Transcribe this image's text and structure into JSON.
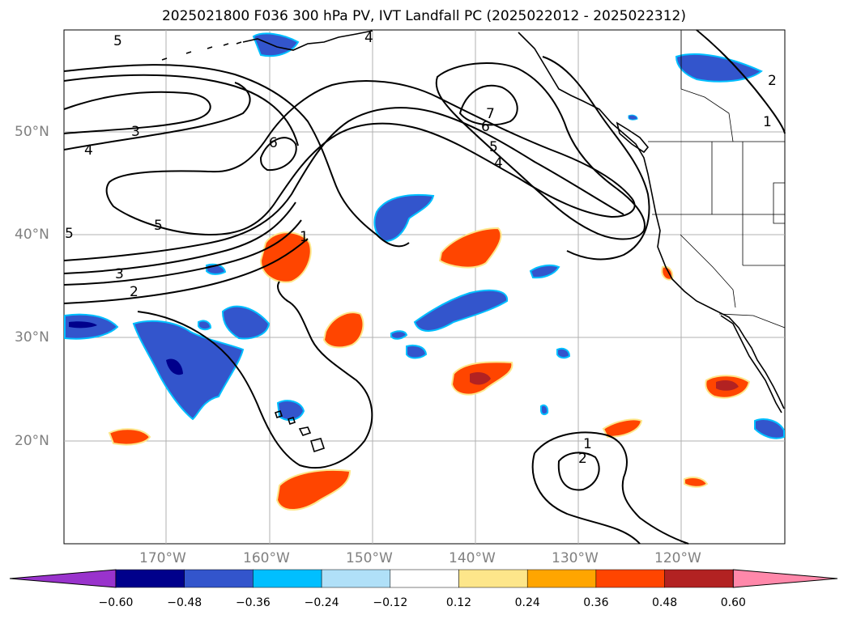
{
  "title": "2025021800 F036 300 hPa PV, IVT Landfall PC (2025022012 - 2025022312)",
  "axes": {
    "lat_labels": [
      "50°N",
      "40°N",
      "30°N",
      "20°N"
    ],
    "lon_labels": [
      "170°W",
      "160°W",
      "150°W",
      "140°W",
      "130°W",
      "120°W"
    ]
  },
  "contour_labels": [
    "5",
    "4",
    "3",
    "4",
    "6",
    "5",
    "3",
    "2",
    "7",
    "6",
    "5",
    "4",
    "2",
    "1",
    "1",
    "2",
    "5",
    "1"
  ],
  "colorbar": {
    "tick_labels": [
      "−0.60",
      "−0.48",
      "−0.36",
      "−0.24",
      "−0.12",
      "0.12",
      "0.24",
      "0.36",
      "0.48",
      "0.60"
    ],
    "colors": [
      "#9933cc",
      "#00008b",
      "#3355cc",
      "#00bfff",
      "#b0e0f8",
      "#ffffff",
      "#fde68a",
      "#ffa500",
      "#ff4500",
      "#b22222",
      "#ff88aa"
    ]
  },
  "colors": {
    "land_outline": "#000000",
    "grid": "#b0b0b0",
    "contour": "#000000"
  }
}
